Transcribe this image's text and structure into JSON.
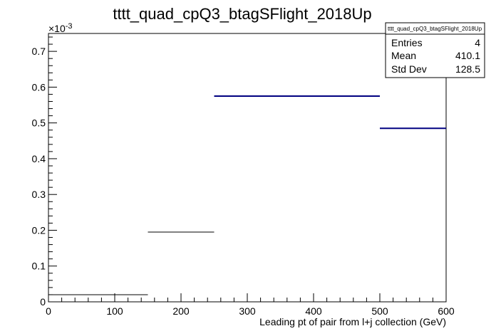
{
  "chart_data": {
    "type": "histogram",
    "title": "tttt_quad_cpQ3_btagSFlight_2018Up",
    "xlabel": "Leading pt of pair from l+j collection (GeV)",
    "ylabel": "",
    "y_exponent_label": "×10",
    "y_exponent_power": "-3",
    "xlim": [
      0,
      600
    ],
    "ylim": [
      0,
      0.00075
    ],
    "x_ticks": [
      0,
      100,
      200,
      300,
      400,
      500,
      600
    ],
    "x_tick_labels": [
      "0",
      "100",
      "200",
      "300",
      "400",
      "500",
      "600"
    ],
    "y_ticks": [
      0,
      0.0001,
      0.0002,
      0.0003,
      0.0004,
      0.0005,
      0.0006,
      0.0007
    ],
    "y_tick_labels": [
      "0",
      "0.1",
      "0.2",
      "0.3",
      "0.4",
      "0.5",
      "0.6",
      "0.7"
    ],
    "bins": [
      {
        "x_low": 0,
        "x_high": 150,
        "value": 2e-05,
        "color": "#000000"
      },
      {
        "x_low": 150,
        "x_high": 250,
        "value": 0.000195,
        "color": "#000000"
      },
      {
        "x_low": 250,
        "x_high": 500,
        "value": 0.000575,
        "color": "#000080"
      },
      {
        "x_low": 500,
        "x_high": 600,
        "value": 0.000485,
        "color": "#000080"
      }
    ],
    "stats_box": {
      "name": "tttt_quad_cpQ3_btagSFlight_2018Up",
      "rows": [
        {
          "label": "Entries",
          "value": "4"
        },
        {
          "label": "Mean",
          "value": "410.1"
        },
        {
          "label": "Std Dev",
          "value": "128.5"
        }
      ]
    }
  }
}
